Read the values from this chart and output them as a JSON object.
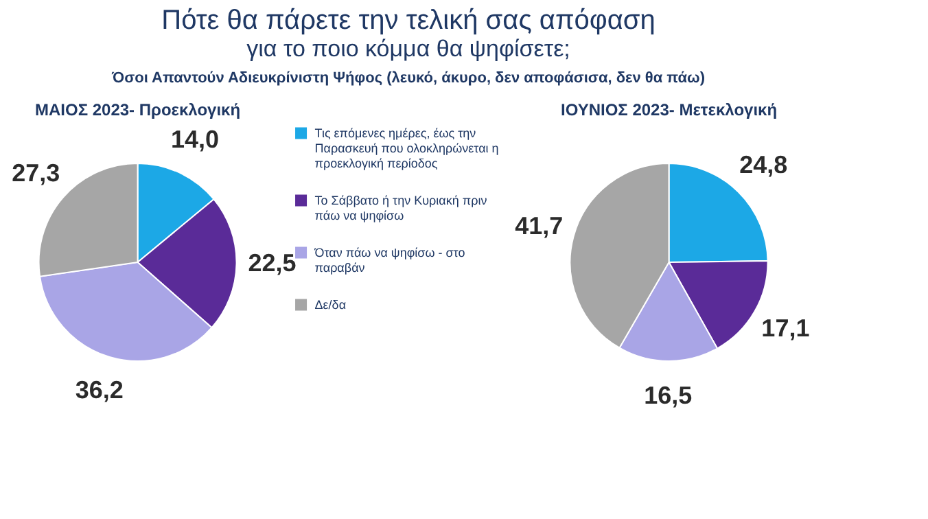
{
  "chart_data": [
    {
      "type": "other",
      "title": "Πότε θα πάρετε την τελική σας απόφαση",
      "subtitle": "για το ποιο κόμμα θα ψηφίσετε;",
      "annotations": [
        "Όσοι Απαντούν Αδιευκρίνιστη Ψήφος (λευκό, άκυρο, δεν αποφάσισα, δεν θα πάω)"
      ]
    },
    {
      "type": "pie",
      "title": "ΜΑΙΟΣ 2023- Προεκλογική",
      "categories": [
        "Τις επόμενες ημέρες, έως την Παρασκευή που ολοκληρώνεται η προεκλογική περίοδος",
        "Το Σάββατο ή την Κυριακή πριν πάω να ψηφίσω",
        "Όταν πάω να ψηφίσω - στο παραβάν",
        "Δε/δα"
      ],
      "values": [
        14.0,
        22.5,
        36.2,
        27.3
      ],
      "value_labels": [
        "14,0",
        "22,5",
        "36,2",
        "27,3"
      ],
      "colors": [
        "#1ca8e6",
        "#5a2b98",
        "#a9a5e6",
        "#a6a6a6"
      ],
      "legend": "right"
    },
    {
      "type": "pie",
      "title": "ΙΟΥΝΙΟΣ 2023- Μετεκλογική",
      "categories": [
        null,
        null,
        null,
        null
      ],
      "values": [
        24.8,
        17.1,
        16.5,
        41.7
      ],
      "value_labels": [
        "24,8",
        "17,1",
        "16,5",
        "41,7"
      ],
      "colors": [
        "#1ca8e6",
        "#5a2b98",
        "#a9a5e6",
        "#a6a6a6"
      ]
    }
  ]
}
